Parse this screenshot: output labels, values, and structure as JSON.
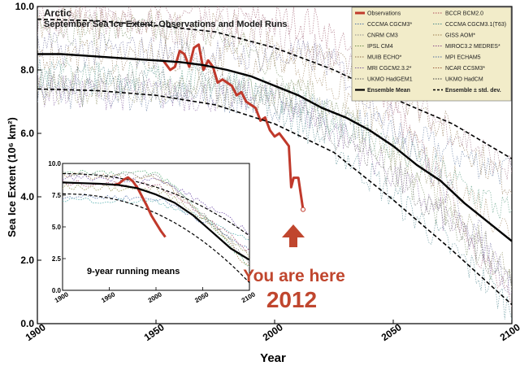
{
  "chart_data": {
    "type": "line",
    "title": "Arctic",
    "subtitle": "September Sea Ice Extent: Observations and Model Runs",
    "xlabel": "Year",
    "ylabel": "Sea Ice Extent (10⁶ km²)",
    "xlim": [
      1900,
      2100
    ],
    "ylim": [
      0,
      10
    ],
    "xticks": [
      "1900",
      "1950",
      "2000",
      "2050",
      "2100"
    ],
    "yticks": [
      "0.0",
      "2.0",
      "4.0",
      "6.0",
      "8.0",
      "10.0"
    ],
    "grid": false,
    "legend_position": "top-right",
    "legend": [
      "Observations",
      "CCCMA CGCM3*",
      "CNRM CM3",
      "IPSL CM4",
      "MUIB ECHO*",
      "MRI CGCM2.3.2*",
      "UKMO HadGEM1",
      "Ensemble Mean",
      "BCCR BCM2.0",
      "CCCMA CGCM3.1(T63)",
      "GISS AOM*",
      "MIROC3.2 MEDRES*",
      "MPI ECHAM5",
      "NCAR CCSM3*",
      "UKMO HadCM",
      "Ensemble ± std. dev."
    ],
    "series": [
      {
        "name": "Observations",
        "color": "#c0392b",
        "x": [
          1953,
          1956,
          1958,
          1960,
          1962,
          1964,
          1966,
          1968,
          1970,
          1972,
          1974,
          1976,
          1978,
          1980,
          1982,
          1984,
          1986,
          1988,
          1990,
          1992,
          1994,
          1996,
          1998,
          2000,
          2002,
          2004,
          2006,
          2007,
          2008,
          2010,
          2012
        ],
        "y": [
          8.3,
          8.0,
          8.1,
          8.6,
          8.5,
          8.1,
          8.7,
          8.8,
          8.0,
          8.3,
          8.1,
          7.6,
          7.7,
          7.6,
          7.5,
          7.2,
          7.3,
          7.0,
          6.9,
          6.8,
          6.4,
          6.5,
          6.1,
          5.9,
          6.0,
          5.8,
          5.6,
          4.3,
          4.6,
          4.6,
          3.6
        ]
      },
      {
        "name": "Ensemble Mean",
        "color": "#000000",
        "x": [
          1900,
          1910,
          1920,
          1930,
          1940,
          1950,
          1960,
          1970,
          1980,
          1990,
          2000,
          2010,
          2020,
          2030,
          2040,
          2050,
          2060,
          2070,
          2080,
          2090,
          2100
        ],
        "y": [
          8.5,
          8.5,
          8.45,
          8.4,
          8.35,
          8.3,
          8.25,
          8.15,
          8.0,
          7.8,
          7.5,
          7.2,
          6.8,
          6.5,
          6.1,
          5.6,
          5.0,
          4.5,
          3.8,
          3.2,
          2.6
        ]
      },
      {
        "name": "Ensemble ± std. dev.",
        "color": "#000000",
        "x": [
          1900,
          1925,
          1950,
          1975,
          2000,
          2025,
          2050,
          2075,
          2100
        ],
        "y": [
          9.6,
          9.55,
          9.4,
          9.2,
          8.7,
          8.0,
          7.1,
          6.3,
          5.2
        ]
      },
      {
        "name": "Ensemble ± std. dev.",
        "color": "#000000",
        "x": [
          1900,
          1925,
          1950,
          1975,
          2000,
          2025,
          2050,
          2075,
          2100
        ],
        "y": [
          7.4,
          7.35,
          7.2,
          6.9,
          6.3,
          5.4,
          3.9,
          2.3,
          0.6
        ]
      }
    ],
    "annotation": [
      "You are here",
      "2012"
    ],
    "inset": {
      "title": "9-year running means",
      "xlim": [
        1900,
        2100
      ],
      "ylim": [
        0,
        10
      ],
      "xticks": [
        "1900",
        "1950",
        "2000",
        "2050",
        "2100"
      ],
      "yticks": [
        "0.0",
        "2.5",
        "5.0",
        "7.5",
        "10.0"
      ],
      "series": [
        {
          "name": "Observations",
          "color": "#c0392b",
          "x": [
            1955,
            1960,
            1965,
            1970,
            1975,
            1980,
            1985,
            1990,
            1995,
            2000,
            2005,
            2010
          ],
          "y": [
            8.3,
            8.4,
            8.7,
            8.9,
            8.6,
            8.1,
            7.4,
            6.7,
            5.9,
            5.3,
            4.7,
            4.2
          ]
        },
        {
          "name": "Ensemble Mean",
          "color": "#000000",
          "x": [
            1900,
            1920,
            1940,
            1960,
            1980,
            2000,
            2020,
            2040,
            2060,
            2080,
            2100
          ],
          "y": [
            8.5,
            8.45,
            8.4,
            8.3,
            8.05,
            7.55,
            6.9,
            5.9,
            4.6,
            3.3,
            2.4
          ]
        }
      ]
    }
  }
}
